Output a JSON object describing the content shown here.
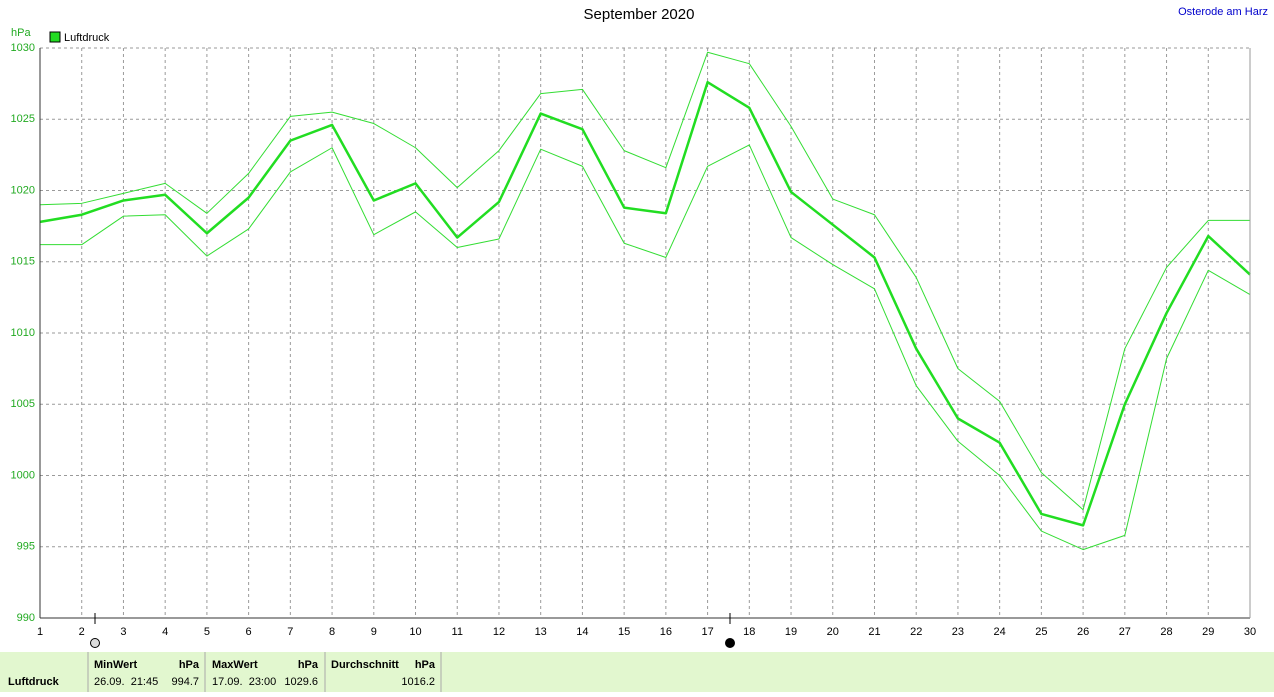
{
  "chart_data": {
    "type": "line",
    "title": "September 2020",
    "location": "Osterode am Harz",
    "y_label": "hPa",
    "x": [
      1,
      2,
      3,
      4,
      5,
      6,
      7,
      8,
      9,
      10,
      11,
      12,
      13,
      14,
      15,
      16,
      17,
      18,
      19,
      20,
      21,
      22,
      23,
      24,
      25,
      26,
      27,
      28,
      29,
      30
    ],
    "xlim": [
      1,
      30
    ],
    "xticks": [
      1,
      2,
      3,
      4,
      5,
      6,
      7,
      8,
      9,
      10,
      11,
      12,
      13,
      14,
      15,
      16,
      17,
      18,
      19,
      20,
      21,
      22,
      23,
      24,
      25,
      26,
      27,
      28,
      29,
      30
    ],
    "ylim": [
      990,
      1030
    ],
    "yticks": [
      990,
      995,
      1000,
      1005,
      1010,
      1015,
      1020,
      1025,
      1030
    ],
    "grid": true,
    "series": [
      {
        "name": "Luftdruck",
        "color": "#22dd22",
        "values": [
          1017.8,
          1018.3,
          1019.3,
          1019.7,
          1017.0,
          1019.5,
          1023.5,
          1024.6,
          1019.3,
          1020.5,
          1016.7,
          1019.2,
          1025.4,
          1024.3,
          1018.8,
          1018.4,
          1027.6,
          1025.8,
          1019.9,
          1017.6,
          1015.3,
          1008.9,
          1004.0,
          1002.3,
          997.3,
          996.5,
          1005.0,
          1011.4,
          1016.8,
          1014.1
        ]
      },
      {
        "color": "#33dd33",
        "values": [
          1019.0,
          1019.1,
          1019.8,
          1020.5,
          1018.4,
          1021.2,
          1025.2,
          1025.5,
          1024.7,
          1023.0,
          1020.2,
          1022.8,
          1026.8,
          1027.1,
          1022.8,
          1021.6,
          1029.7,
          1028.9,
          1024.5,
          1019.4,
          1018.3,
          1013.9,
          1007.5,
          1005.2,
          1000.2,
          997.6,
          1008.9,
          1014.6,
          1017.9,
          1017.9
        ]
      },
      {
        "color": "#33dd33",
        "values": [
          1016.2,
          1016.2,
          1018.2,
          1018.3,
          1015.4,
          1017.3,
          1021.3,
          1023.0,
          1016.9,
          1018.5,
          1016.0,
          1016.6,
          1022.9,
          1021.7,
          1016.3,
          1015.3,
          1021.7,
          1023.2,
          1016.7,
          1014.8,
          1013.1,
          1006.3,
          1002.4,
          1000.0,
          996.1,
          994.8,
          995.8,
          1008.2,
          1014.4,
          1012.7
        ]
      }
    ]
  },
  "summary": {
    "label": "Luftdruck",
    "columns": [
      {
        "header": "MinWert",
        "unit": "hPa",
        "when": "26.09.  21:45",
        "value": 994.7
      },
      {
        "header": "MaxWert",
        "unit": "hPa",
        "when": "17.09.  23:00",
        "value": 1029.6
      },
      {
        "header": "Durchschnitt",
        "unit": "hPa",
        "value": 1016.2
      }
    ]
  }
}
